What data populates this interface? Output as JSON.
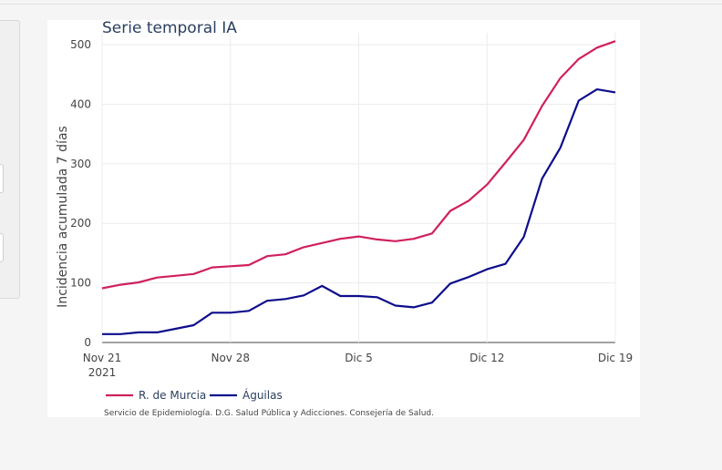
{
  "chart_data": {
    "type": "line",
    "title": "Serie temporal IA",
    "xlabel": "",
    "ylabel": "Incidencia acumulada 7 días",
    "x_ticks": [
      "Nov 21",
      "Nov 28",
      "Dic 5",
      "Dic 12",
      "Dic 19"
    ],
    "x_tick_sublabel": "2021",
    "x": [
      "2021-11-21",
      "2021-11-22",
      "2021-11-23",
      "2021-11-24",
      "2021-11-25",
      "2021-11-26",
      "2021-11-27",
      "2021-11-28",
      "2021-11-29",
      "2021-11-30",
      "2021-12-01",
      "2021-12-02",
      "2021-12-03",
      "2021-12-04",
      "2021-12-05",
      "2021-12-06",
      "2021-12-07",
      "2021-12-08",
      "2021-12-09",
      "2021-12-10",
      "2021-12-11",
      "2021-12-12",
      "2021-12-13",
      "2021-12-14",
      "2021-12-15",
      "2021-12-16",
      "2021-12-17",
      "2021-12-18",
      "2021-12-19"
    ],
    "ylim": [
      0,
      520
    ],
    "y_ticks": [
      0,
      100,
      200,
      300,
      400,
      500
    ],
    "grid": true,
    "legend_position": "bottom-left, horizontal",
    "series": [
      {
        "name": "R. de Murcia",
        "color": "#d0205f",
        "values": [
          91,
          97,
          101,
          109,
          112,
          115,
          126,
          128,
          130,
          145,
          148,
          160,
          167,
          174,
          178,
          173,
          170,
          174,
          183,
          221,
          238,
          265,
          302,
          340,
          397,
          444,
          476,
          495,
          506
        ]
      },
      {
        "name": "Águilas",
        "color": "#0d0d8c",
        "values": [
          14,
          14,
          17,
          17,
          23,
          29,
          50,
          50,
          53,
          70,
          73,
          79,
          95,
          78,
          78,
          76,
          62,
          59,
          67,
          99,
          110,
          123,
          132,
          177,
          275,
          327,
          406,
          425,
          420
        ]
      }
    ],
    "annotations": [
      "Servicio de Epidemiología. D.G. Salud Pública y Adicciones. Consejería de Salud."
    ]
  }
}
